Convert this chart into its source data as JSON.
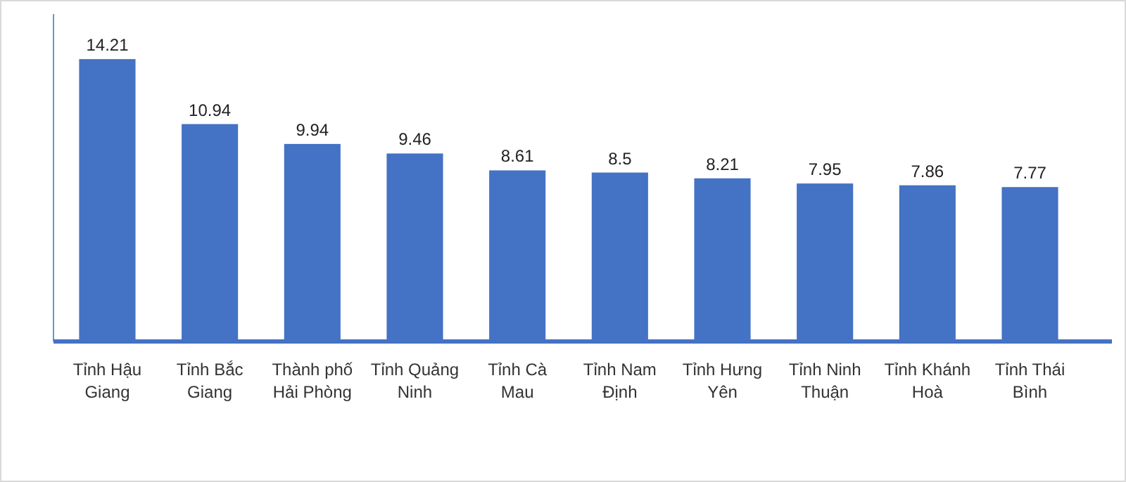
{
  "chart_data": {
    "type": "bar",
    "categories": [
      "Tỉnh Hậu Giang",
      "Tỉnh Bắc Giang",
      "Thành phố Hải Phòng",
      "Tỉnh Quảng Ninh",
      "Tỉnh Cà Mau",
      "Tỉnh Nam Định",
      "Tỉnh Hưng Yên",
      "Tỉnh Ninh Thuận",
      "Tỉnh Khánh Hoà",
      "Tỉnh Thái Bình"
    ],
    "values": [
      14.21,
      10.94,
      9.94,
      9.46,
      8.61,
      8.5,
      8.21,
      7.95,
      7.86,
      7.77
    ],
    "color": "#4472c4",
    "data_labels": true
  }
}
